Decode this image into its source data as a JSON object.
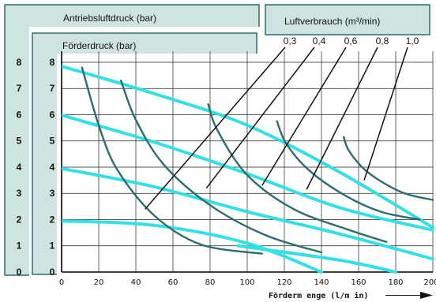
{
  "chart_data": {
    "type": "line",
    "labels": {
      "drive_pressure": "Antriebsluftdruck (bar)",
      "delivery_pressure": "Förderdruck (bar)",
      "air_consumption": "Luftverbrauch (m³/min)",
      "xlabel": "Förderm enge (l/m in)"
    },
    "colors": {
      "panel": "#cfe3e3",
      "panel_border": "#2f6d6d",
      "dark": "#2f6f6f",
      "grid": "#222222",
      "pressure_line": "#33e0e6",
      "consumption_line": "#2c6c6c",
      "leader": "#111111"
    },
    "x_ticks": [
      "0",
      "20",
      "40",
      "60",
      "80",
      "100",
      "120",
      "140",
      "160",
      "180",
      "200"
    ],
    "xlim": [
      0,
      200
    ],
    "y_ticks": [
      "0",
      "1",
      "2",
      "3",
      "4",
      "5",
      "6",
      "7",
      "8"
    ],
    "ylim": [
      0,
      8.3
    ],
    "drive_pressure_ticks": [
      "0",
      "1",
      "2",
      "3",
      "4",
      "5",
      "6",
      "7",
      "8"
    ],
    "pressure_series": [
      {
        "points": [
          [
            0,
            7.85
          ],
          [
            50,
            6.8
          ],
          [
            100,
            5.6
          ],
          [
            150,
            3.8
          ],
          [
            200,
            1.7
          ]
        ]
      },
      {
        "points": [
          [
            0,
            5.98
          ],
          [
            50,
            4.95
          ],
          [
            100,
            3.75
          ],
          [
            150,
            2.45
          ],
          [
            200,
            1.6
          ]
        ]
      },
      {
        "points": [
          [
            0,
            3.95
          ],
          [
            50,
            3.25
          ],
          [
            100,
            2.3
          ],
          [
            150,
            1.45
          ],
          [
            200,
            0.5
          ]
        ]
      },
      {
        "points": [
          [
            0,
            1.95
          ],
          [
            50,
            1.78
          ],
          [
            100,
            1.1
          ],
          [
            140,
            0.0
          ]
        ]
      },
      {
        "points": [
          [
            95,
            1.0
          ],
          [
            150,
            0.45
          ],
          [
            180,
            0.0
          ]
        ]
      }
    ],
    "consumption_values": [
      "0,3",
      "0,4",
      "0,6",
      "0,8",
      "1,0"
    ],
    "consumption_series": [
      {
        "label": "0,3",
        "points": [
          [
            11,
            7.8
          ],
          [
            20,
            5.6
          ],
          [
            30,
            3.9
          ],
          [
            50,
            2.15
          ],
          [
            75,
            1.05
          ],
          [
            108,
            0.7
          ]
        ]
      },
      {
        "label": "0,4",
        "points": [
          [
            32,
            7.3
          ],
          [
            40,
            5.8
          ],
          [
            55,
            4.1
          ],
          [
            80,
            2.55
          ],
          [
            110,
            1.4
          ],
          [
            140,
            0.75
          ]
        ]
      },
      {
        "label": "0,6",
        "points": [
          [
            79,
            6.4
          ],
          [
            84,
            5.4
          ],
          [
            100,
            3.7
          ],
          [
            125,
            2.4
          ],
          [
            155,
            1.6
          ],
          [
            175,
            1.15
          ]
        ]
      },
      {
        "label": "0,8",
        "points": [
          [
            116,
            5.75
          ],
          [
            121,
            4.9
          ],
          [
            133,
            3.9
          ],
          [
            152,
            2.95
          ],
          [
            172,
            2.3
          ],
          [
            193,
            2.0
          ]
        ]
      },
      {
        "label": "1,0",
        "points": [
          [
            152,
            5.15
          ],
          [
            155,
            4.6
          ],
          [
            165,
            3.8
          ],
          [
            183,
            3.05
          ],
          [
            200,
            2.75
          ]
        ]
      }
    ],
    "leader_lines": [
      {
        "label": "0,3",
        "to": [
          45,
          2.4
        ]
      },
      {
        "label": "0,4",
        "to": [
          78,
          3.2
        ]
      },
      {
        "label": "0,6",
        "to": [
          108,
          3.3
        ]
      },
      {
        "label": "0,8",
        "to": [
          132,
          3.15
        ]
      },
      {
        "label": "1,0",
        "to": [
          163,
          3.5
        ]
      }
    ]
  }
}
